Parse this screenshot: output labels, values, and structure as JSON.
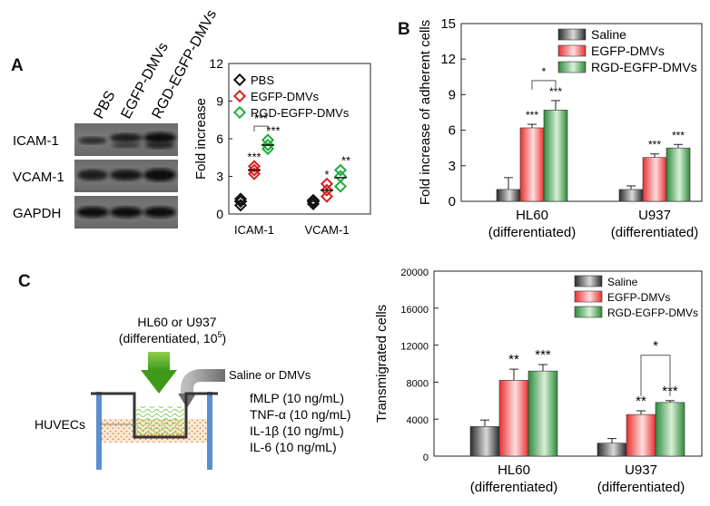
{
  "panels": {
    "a": "A",
    "b": "B",
    "c": "C"
  },
  "western_blot": {
    "lane_labels": [
      "PBS",
      "EGFP-DMVs",
      "RGD-EGFP-DMVs"
    ],
    "row_labels": [
      "ICAM-1",
      "VCAM-1",
      "GAPDH"
    ]
  },
  "chart_data": [
    {
      "id": "A-scatter",
      "type": "scatter",
      "ylabel": "Fold increase",
      "ylim": [
        0,
        12
      ],
      "yticks": [
        "0",
        "3",
        "6",
        "9",
        "12"
      ],
      "categories": [
        "ICAM-1",
        "VCAM-1"
      ],
      "legend": [
        "PBS",
        "EGFP-DMVs",
        "RGD-EGFP-DMVs"
      ],
      "colors": [
        "#111111",
        "#d62020",
        "#1fae3a"
      ],
      "series": [
        {
          "name": "PBS",
          "points": [
            [
              0.7,
              1.0,
              1.2
            ],
            [
              0.8,
              1.0,
              1.1
            ]
          ],
          "mean": [
            1.0,
            1.0
          ]
        },
        {
          "name": "EGFP-DMVs",
          "points": [
            [
              3.2,
              3.5,
              3.8
            ],
            [
              1.4,
              1.9,
              2.4
            ]
          ],
          "mean": [
            3.5,
            1.9
          ]
        },
        {
          "name": "RGD-EGFP-DMVs",
          "points": [
            [
              5.2,
              5.5,
              5.9
            ],
            [
              2.2,
              3.0,
              3.5
            ]
          ],
          "mean": [
            5.5,
            2.9
          ]
        }
      ],
      "sig": [
        {
          "cat": 0,
          "series": 1,
          "label": "***"
        },
        {
          "cat": 0,
          "series": 2,
          "label": "***"
        },
        {
          "cat": 1,
          "series": 1,
          "label": "*"
        },
        {
          "cat": 1,
          "series": 2,
          "label": "**"
        }
      ],
      "bracket": {
        "cat": 0,
        "label": "***"
      }
    },
    {
      "id": "B-bar",
      "type": "bar",
      "ylabel": "Fold increase of adherent cells",
      "ylim": [
        0,
        15
      ],
      "yticks": [
        "0",
        "3",
        "6",
        "9",
        "12",
        "15"
      ],
      "categories": [
        [
          "HL60",
          "(differentiated)"
        ],
        [
          "U937",
          "(differentiated)"
        ]
      ],
      "series": [
        {
          "name": "Saline",
          "values": [
            1.0,
            1.0
          ],
          "errors": [
            1.0,
            0.3
          ]
        },
        {
          "name": "EGFP-DMVs",
          "values": [
            6.2,
            3.7
          ],
          "errors": [
            0.3,
            0.3
          ]
        },
        {
          "name": "RGD-EGFP-DMVs",
          "values": [
            7.7,
            4.5
          ],
          "errors": [
            0.8,
            0.3
          ]
        }
      ],
      "sig": [
        [
          null,
          null
        ],
        [
          "***",
          "***"
        ],
        [
          "***",
          "***"
        ]
      ],
      "bracket": {
        "cat": 0,
        "label": "*"
      }
    },
    {
      "id": "C-bar",
      "type": "bar",
      "ylabel": "Transmigrated cells",
      "ylim": [
        0,
        20000
      ],
      "yticks": [
        "0",
        "4000",
        "8000",
        "12000",
        "16000",
        "20000"
      ],
      "categories": [
        [
          "HL60",
          "(differentiated)"
        ],
        [
          "U937",
          "(differentiated)"
        ]
      ],
      "series": [
        {
          "name": "Saline",
          "values": [
            3200,
            1400
          ],
          "errors": [
            700,
            500
          ]
        },
        {
          "name": "EGFP-DMVs",
          "values": [
            8200,
            4500
          ],
          "errors": [
            1200,
            400
          ]
        },
        {
          "name": "RGD-EGFP-DMVs",
          "values": [
            9200,
            5800
          ],
          "errors": [
            700,
            200
          ]
        }
      ],
      "sig": [
        [
          null,
          null
        ],
        [
          "**",
          "**"
        ],
        [
          "***",
          "***"
        ]
      ],
      "bracket": {
        "cat": 1,
        "label": "*"
      }
    }
  ],
  "diagram": {
    "cells_line1": "HL60 or U937",
    "cells_line2": "(differentiated, 10",
    "cells_exp": "5",
    "cells_close": ")",
    "treatment": "Saline or DMVs",
    "monolayer": "HUVECs",
    "chemo": [
      "fMLP (10 ng/mL)",
      "TNF-α (10 ng/mL)",
      "IL-1β (10 ng/mL)",
      "IL-6 (10 ng/mL)"
    ]
  }
}
